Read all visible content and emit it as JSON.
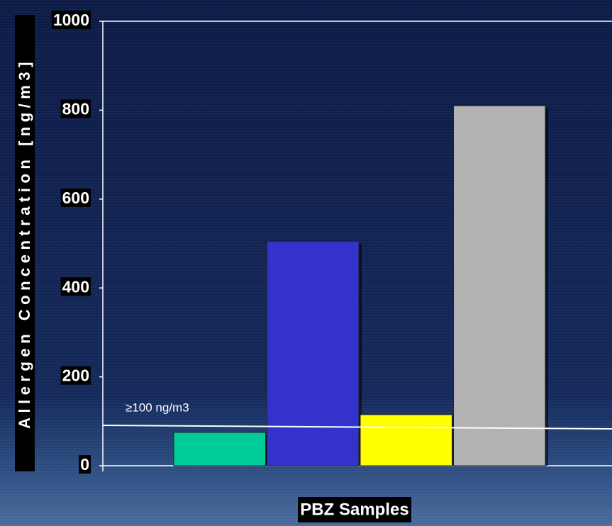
{
  "chart_data": {
    "type": "bar",
    "y_label": "Allergen Concentration [ng/m3]",
    "x_label": "PBZ Samples",
    "categories": [
      null,
      null,
      null,
      null
    ],
    "values": [
      75,
      505,
      115,
      810
    ],
    "colors": [
      "#00cc99",
      "#3333cc",
      "#ffff00",
      "#b2b2b2"
    ],
    "ylim": [
      0,
      1000
    ],
    "yticks": [
      0,
      200,
      400,
      600,
      800,
      1000
    ],
    "reference_line": {
      "label": "≥100 ng/m3",
      "start": 91,
      "end": 83,
      "color": "#ffffff"
    }
  }
}
